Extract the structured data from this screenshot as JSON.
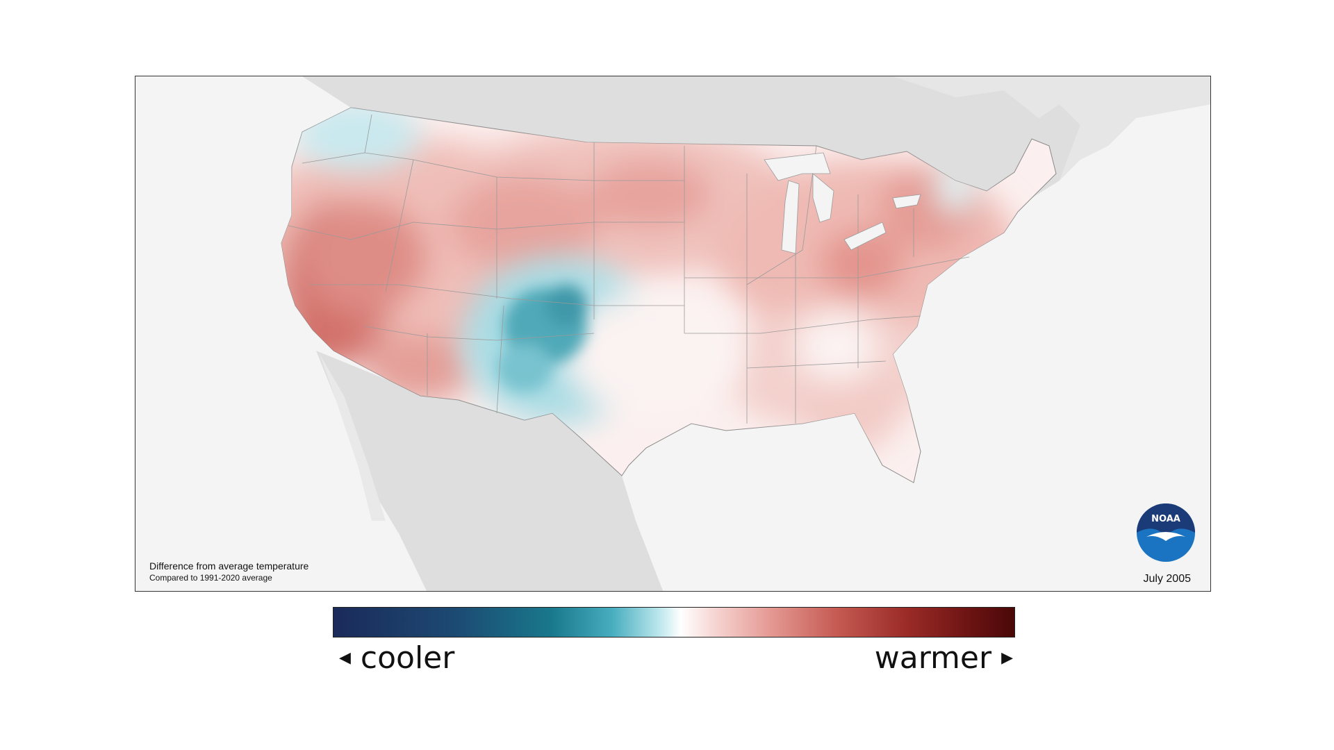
{
  "map": {
    "caption_title": "Difference from average temperature",
    "caption_subtitle": "Compared to 1991-2020 average",
    "date": "July 2005",
    "logo_text": "NOAA",
    "colors": {
      "land_background": "#dedede",
      "ocean": "#f4f4f4",
      "neutral": "#fbf3f2",
      "warm_light": "#f3c6c1",
      "warm_mid": "#e3908a",
      "warm_strong": "#cc6a64",
      "cool_light": "#c4e8ee",
      "cool_mid": "#7ccbd6",
      "cool_strong": "#3fa4b4",
      "logo_blue": "#1b74c1",
      "logo_navy": "#1a3a78"
    }
  },
  "legend": {
    "cooler_label": "cooler",
    "warmer_label": "warmer",
    "cooler_arrow": "◀",
    "warmer_arrow": "▶",
    "scale_colors": [
      "#1b2a5a",
      "#19788c",
      "#bfe8ee",
      "#ffffff",
      "#e59a94",
      "#9b2c28",
      "#4a0808"
    ]
  }
}
